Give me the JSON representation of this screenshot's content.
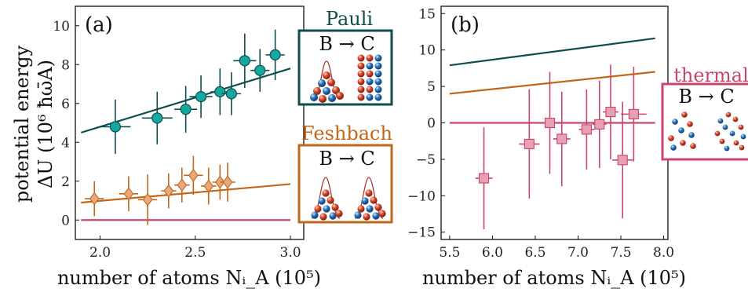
{
  "figure": {
    "y_axis_label_line1": "potential energy",
    "y_axis_label_line2": "ΔU (10⁶ ħω̄A)"
  },
  "chart_data": [
    {
      "type": "scatter",
      "panel_label": "(a)",
      "xlabel": "number of atoms Nᵢ_A (10⁵)",
      "ylabel": "potential energy ΔU (10⁶ ħω̄A)",
      "xlim": [
        1.87,
        3.07
      ],
      "ylim": [
        -1,
        11
      ],
      "xticks": [
        2.0,
        2.5,
        3.0
      ],
      "xtick_labels": [
        "2.0",
        "2.5",
        "3.0"
      ],
      "yticks": [
        0,
        2,
        4,
        6,
        8,
        10
      ],
      "ytick_labels": [
        "0",
        "2",
        "4",
        "6",
        "8",
        "10"
      ],
      "grid": false,
      "series": [
        {
          "name": "Pauli",
          "color": "#0f4d4d",
          "marker_fill": "#14a8a0",
          "marker": "circle",
          "points": [
            {
              "x": 2.08,
              "y": 4.8,
              "xerr": 0.08,
              "yerr": 1.4
            },
            {
              "x": 2.3,
              "y": 5.25,
              "xerr": 0.08,
              "yerr": 1.35
            },
            {
              "x": 2.45,
              "y": 5.7,
              "xerr": 0.06,
              "yerr": 1.2
            },
            {
              "x": 2.53,
              "y": 6.35,
              "xerr": 0.06,
              "yerr": 1.1
            },
            {
              "x": 2.63,
              "y": 6.6,
              "xerr": 0.05,
              "yerr": 1.2
            },
            {
              "x": 2.69,
              "y": 6.5,
              "xerr": 0.05,
              "yerr": 1.1
            },
            {
              "x": 2.76,
              "y": 8.2,
              "xerr": 0.06,
              "yerr": 1.4
            },
            {
              "x": 2.84,
              "y": 7.7,
              "xerr": 0.05,
              "yerr": 1.1
            },
            {
              "x": 2.92,
              "y": 8.5,
              "xerr": 0.05,
              "yerr": 1.3
            }
          ],
          "fit_line": {
            "x": [
              1.9,
              3.0
            ],
            "y": [
              4.5,
              7.8
            ]
          }
        },
        {
          "name": "Feshbach",
          "color": "#c2661a",
          "marker_fill": "#e8a87c",
          "marker": "diamond",
          "points": [
            {
              "x": 1.97,
              "y": 1.1,
              "xerr": 0.05,
              "yerr": 0.9
            },
            {
              "x": 2.15,
              "y": 1.35,
              "xerr": 0.05,
              "yerr": 0.9
            },
            {
              "x": 2.25,
              "y": 1.05,
              "xerr": 0.05,
              "yerr": 1.3
            },
            {
              "x": 2.36,
              "y": 1.5,
              "xerr": 0.04,
              "yerr": 0.9
            },
            {
              "x": 2.43,
              "y": 1.8,
              "xerr": 0.04,
              "yerr": 0.9
            },
            {
              "x": 2.49,
              "y": 2.3,
              "xerr": 0.05,
              "yerr": 1.0
            },
            {
              "x": 2.57,
              "y": 1.75,
              "xerr": 0.04,
              "yerr": 0.95
            },
            {
              "x": 2.63,
              "y": 1.95,
              "xerr": 0.04,
              "yerr": 0.9
            },
            {
              "x": 2.67,
              "y": 1.95,
              "xerr": 0.04,
              "yerr": 1.0
            }
          ],
          "fit_line": {
            "x": [
              1.9,
              3.0
            ],
            "y": [
              0.9,
              1.85
            ]
          }
        },
        {
          "name": "thermal",
          "color": "#c9456a",
          "fit_line": {
            "x": [
              1.9,
              3.0
            ],
            "y": [
              0.0,
              0.0
            ]
          }
        }
      ]
    },
    {
      "type": "scatter",
      "panel_label": "(b)",
      "xlabel": "number of atoms Nᵢ_A (10⁵)",
      "xlim": [
        5.4,
        8.05
      ],
      "ylim": [
        -16,
        16
      ],
      "xticks": [
        5.5,
        6.0,
        6.5,
        7.0,
        7.5,
        8.0
      ],
      "xtick_labels": [
        "5.5",
        "6.0",
        "6.5",
        "7.0",
        "7.5",
        "8.0"
      ],
      "yticks": [
        -15,
        -10,
        -5,
        0,
        5,
        10,
        15
      ],
      "ytick_labels": [
        "−15",
        "−10",
        "−5",
        "0",
        "5",
        "10",
        "15"
      ],
      "grid": false,
      "series": [
        {
          "name": "Pauli",
          "color": "#0f4d4d",
          "fit_line": {
            "x": [
              5.5,
              7.9
            ],
            "y": [
              7.9,
              11.6
            ]
          }
        },
        {
          "name": "Feshbach",
          "color": "#c2661a",
          "fit_line": {
            "x": [
              5.5,
              7.9
            ],
            "y": [
              4.0,
              7.0
            ]
          }
        },
        {
          "name": "thermal",
          "color": "#c9456a",
          "marker_fill": "#e8a0b4",
          "marker": "square",
          "points": [
            {
              "x": 5.9,
              "y": -7.6,
              "xerr": 0.1,
              "yerr": 7.0
            },
            {
              "x": 6.43,
              "y": -2.9,
              "xerr": 0.12,
              "yerr": 7.5
            },
            {
              "x": 6.67,
              "y": 0.0,
              "xerr": 0.1,
              "yerr": 7.0
            },
            {
              "x": 6.81,
              "y": -2.2,
              "xerr": 0.1,
              "yerr": 6.5
            },
            {
              "x": 7.1,
              "y": -0.9,
              "xerr": 0.09,
              "yerr": 5.5
            },
            {
              "x": 7.25,
              "y": -0.2,
              "xerr": 0.08,
              "yerr": 6.0
            },
            {
              "x": 7.38,
              "y": 1.5,
              "xerr": 0.09,
              "yerr": 6.5
            },
            {
              "x": 7.52,
              "y": -5.1,
              "xerr": 0.12,
              "yerr": 8.0
            },
            {
              "x": 7.65,
              "y": 1.2,
              "xerr": 0.15,
              "yerr": 6.5
            }
          ],
          "fit_line": {
            "x": [
              5.5,
              7.9
            ],
            "y": [
              0.0,
              0.0
            ]
          }
        }
      ]
    }
  ],
  "insets": [
    {
      "name": "pauli",
      "title": "Pauli",
      "label": "B → C",
      "color": "#0f4d4d"
    },
    {
      "name": "feshbach",
      "title": "Feshbach",
      "label": "B → C",
      "color": "#c2661a"
    },
    {
      "name": "thermal",
      "title": "thermal",
      "label": "B → C",
      "color": "#c9456a"
    }
  ]
}
